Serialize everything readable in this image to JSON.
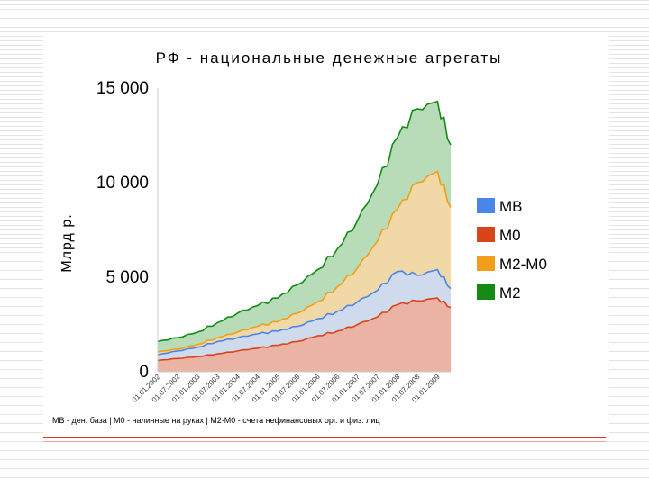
{
  "chart_data": {
    "type": "area",
    "title": "РФ - национальные денежные агрегаты",
    "ylabel": "Млрд р.",
    "xlabel": "",
    "ylim": [
      0,
      15000
    ],
    "yticks": [
      0,
      5000,
      10000,
      15000
    ],
    "ytick_labels": [
      "0",
      "5 000",
      "10 000",
      "15 000"
    ],
    "x_tick_labels": [
      "01.01.2002",
      "01.07.2002",
      "01.01.2003",
      "01.07.2003",
      "01.01.2004",
      "01.07.2004",
      "01.01.2005",
      "01.07.2005",
      "01.01.2006",
      "01.07.2006",
      "01.01.2007",
      "01.07.2007",
      "01.01.2008",
      "01.07.2008",
      "01.01.2009"
    ],
    "x": [
      "01.01.2002",
      "01.07.2002",
      "01.01.2003",
      "01.07.2003",
      "01.01.2004",
      "01.07.2004",
      "01.01.2005",
      "01.07.2005",
      "01.01.2006",
      "01.07.2006",
      "01.01.2007",
      "01.07.2007",
      "01.01.2008",
      "01.07.2008",
      "01.01.2009",
      "01.05.2009"
    ],
    "grid": false,
    "legend": "right",
    "series": [
      {
        "name": "MB",
        "color": "#4a86e8",
        "values": [
          900,
          1100,
          1300,
          1600,
          1800,
          2000,
          2150,
          2400,
          2800,
          3200,
          3700,
          4300,
          5300,
          5100,
          5400,
          4400
        ]
      },
      {
        "name": "M0",
        "color": "#d9441a",
        "values": [
          600,
          700,
          800,
          950,
          1100,
          1250,
          1400,
          1600,
          1900,
          2150,
          2500,
          2900,
          3550,
          3750,
          3900,
          3400
        ]
      },
      {
        "name": "M2-M0",
        "color": "#f29e1a",
        "values": [
          1050,
          1200,
          1450,
          1800,
          2100,
          2400,
          2650,
          3100,
          3700,
          4500,
          5500,
          6900,
          8600,
          10000,
          10600,
          8700
        ]
      },
      {
        "name": "M2",
        "color": "#138a13",
        "values": [
          1600,
          1800,
          2100,
          2600,
          3100,
          3500,
          3900,
          4600,
          5400,
          6500,
          8000,
          9900,
          12400,
          13900,
          14300,
          12000
        ]
      }
    ],
    "draw_order": [
      "M2",
      "M2-M0",
      "MB",
      "M0"
    ],
    "footnote": "MB - ден. база | M0 - наличные на руках | M2-M0 - счета нефинансовых орг. и физ. лиц"
  }
}
